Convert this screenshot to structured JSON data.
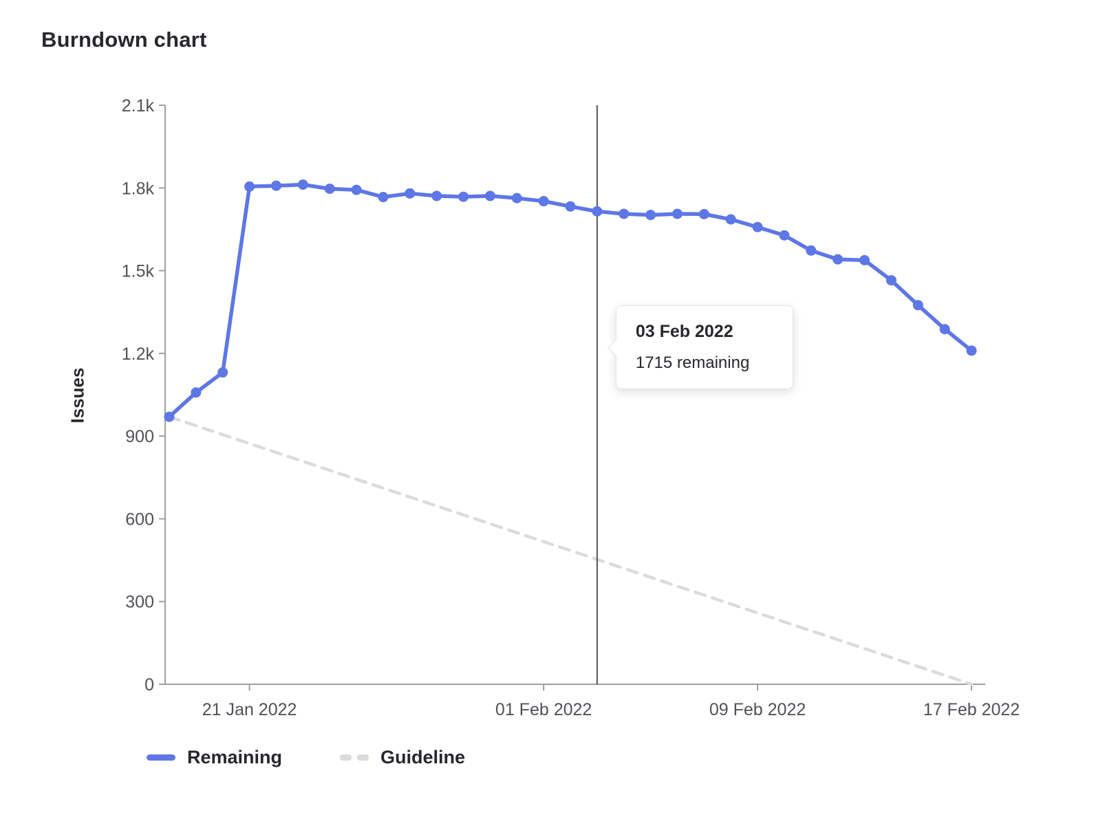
{
  "page": {
    "title": "Burndown chart"
  },
  "y_axis_label": "Issues",
  "tooltip": {
    "date": "03 Feb 2022",
    "text": "1715 remaining"
  },
  "legend": {
    "remaining": "Remaining",
    "guideline": "Guideline"
  },
  "colors": {
    "remaining": "#5e77e6",
    "guideline": "#dbdbdb",
    "axis": "#9e9e9e",
    "tick_text": "#535158",
    "title_text": "#28272d",
    "current_date_line": "#54545c",
    "tooltip_border": "#e4e4e4",
    "background": "#ffffff"
  },
  "chart_data": {
    "type": "line",
    "title": "Burndown chart",
    "xlabel": "",
    "ylabel": "Issues",
    "ylim": [
      0,
      2100
    ],
    "grid": false,
    "legend_position": "bottom",
    "x": [
      "18 Jan 2022",
      "19 Jan 2022",
      "20 Jan 2022",
      "21 Jan 2022",
      "22 Jan 2022",
      "23 Jan 2022",
      "24 Jan 2022",
      "25 Jan 2022",
      "26 Jan 2022",
      "27 Jan 2022",
      "28 Jan 2022",
      "29 Jan 2022",
      "30 Jan 2022",
      "31 Jan 2022",
      "01 Feb 2022",
      "02 Feb 2022",
      "03 Feb 2022",
      "04 Feb 2022",
      "05 Feb 2022",
      "06 Feb 2022",
      "07 Feb 2022",
      "08 Feb 2022",
      "09 Feb 2022",
      "10 Feb 2022",
      "11 Feb 2022",
      "12 Feb 2022",
      "13 Feb 2022",
      "14 Feb 2022",
      "15 Feb 2022",
      "16 Feb 2022",
      "17 Feb 2022"
    ],
    "series": [
      {
        "name": "Remaining",
        "style": "solid",
        "color": "#5e77e6",
        "values": [
          970,
          1058,
          1131,
          1805,
          1808,
          1812,
          1797,
          1793,
          1767,
          1780,
          1771,
          1768,
          1771,
          1763,
          1752,
          1733,
          1715,
          1706,
          1702,
          1706,
          1705,
          1686,
          1658,
          1628,
          1573,
          1541,
          1538,
          1465,
          1375,
          1288,
          1210
        ]
      }
    ],
    "guideline": {
      "name": "Guideline",
      "style": "dashed",
      "color": "#dbdbdb",
      "x_indices": [
        0,
        30
      ],
      "values": [
        970,
        0
      ]
    },
    "x_ticks": [
      {
        "label": "21 Jan 2022",
        "index": 3
      },
      {
        "label": "01 Feb 2022",
        "index": 14
      },
      {
        "label": "09 Feb 2022",
        "index": 22
      },
      {
        "label": "17 Feb 2022",
        "index": 30
      }
    ],
    "y_ticks": [
      {
        "label": "0",
        "value": 0
      },
      {
        "label": "300",
        "value": 300
      },
      {
        "label": "600",
        "value": 600
      },
      {
        "label": "900",
        "value": 900
      },
      {
        "label": "1.2k",
        "value": 1200
      },
      {
        "label": "1.5k",
        "value": 1500
      },
      {
        "label": "1.8k",
        "value": 1800
      },
      {
        "label": "2.1k",
        "value": 2100
      }
    ],
    "marker": {
      "index": 16,
      "date": "03 Feb 2022",
      "value": 1715
    }
  }
}
